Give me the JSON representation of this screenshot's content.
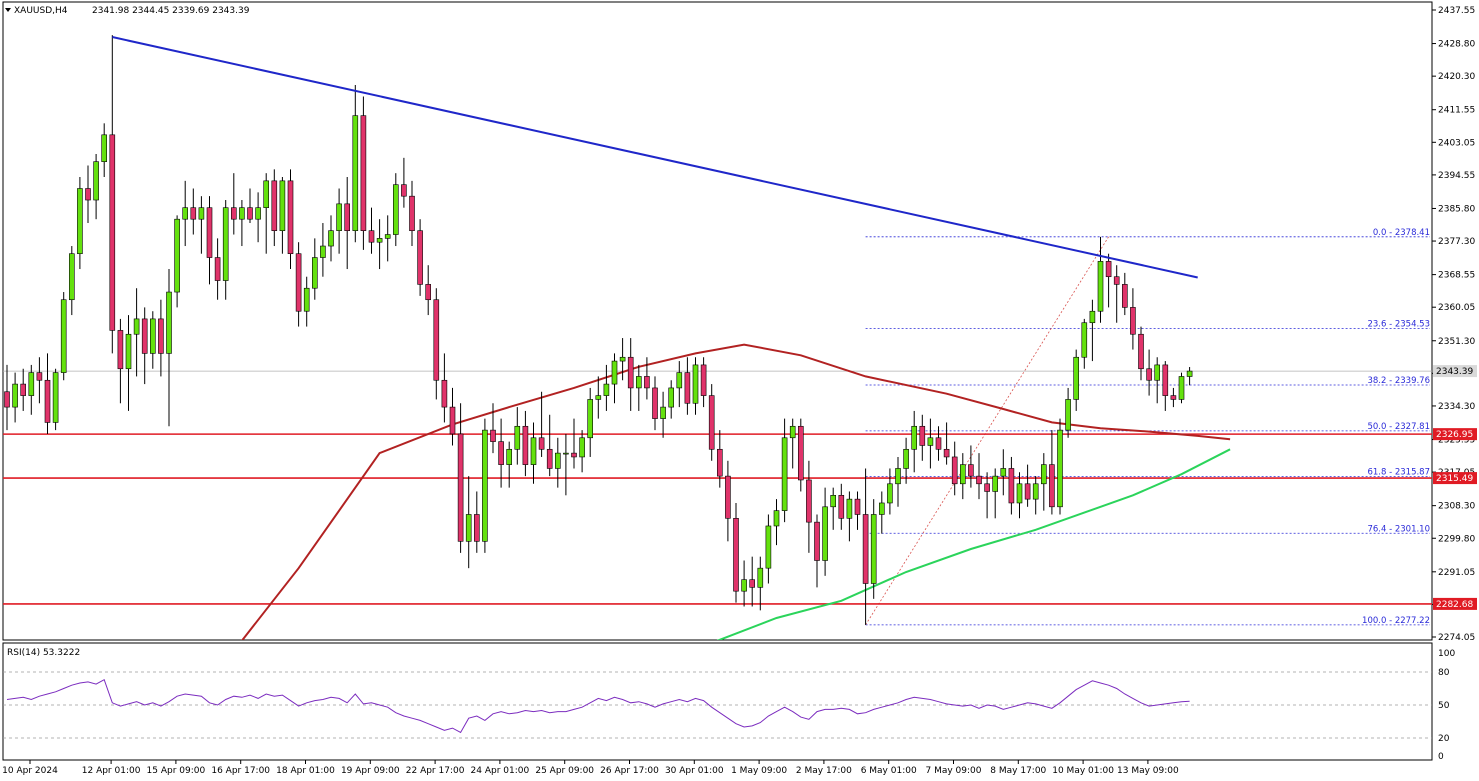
{
  "chart_header": {
    "symbol": "XAUUSD,H4",
    "ohlc": "2341.98 2344.45 2339.69 2343.39"
  },
  "rsi_header": "RSI(14) 53.3222",
  "colors": {
    "bull_fill": "#64e10e",
    "bear_fill": "#e0336a",
    "wick": "#000000",
    "trendline": "#1f27c9",
    "ma_slow": "#b22222",
    "ma_fast": "#2bd45b",
    "support_resistance": "#e01b24",
    "fib": "#2a2ad8",
    "rsi": "#7b2cbf"
  },
  "chart_data": {
    "type": "candlestick",
    "price_axis": {
      "range": [
        2274.05,
        2437.55
      ],
      "ticks": [
        "2437.55",
        "2428.80",
        "2420.30",
        "2411.55",
        "2403.05",
        "2394.55",
        "2385.80",
        "2377.30",
        "2368.55",
        "2360.05",
        "2351.30",
        "2342.80",
        "2334.30",
        "2325.55",
        "2317.05",
        "2308.30",
        "2299.80",
        "2291.05",
        "2282.55",
        "2274.05"
      ]
    },
    "time_axis": {
      "labels": [
        "10 Apr 2024",
        "12 Apr 01:00",
        "15 Apr 09:00",
        "16 Apr 17:00",
        "18 Apr 01:00",
        "19 Apr 09:00",
        "22 Apr 17:00",
        "24 Apr 01:00",
        "25 Apr 09:00",
        "26 Apr 17:00",
        "30 Apr 01:00",
        "1 May 09:00",
        "2 May 17:00",
        "6 May 01:00",
        "7 May 09:00",
        "8 May 17:00",
        "10 May 01:00",
        "13 May 09:00"
      ],
      "label_bar_index": [
        0,
        11,
        19,
        27,
        35,
        43,
        51,
        59,
        67,
        75,
        83,
        91,
        99,
        107,
        115,
        123,
        131,
        139
      ]
    },
    "candles": [
      [
        2338.0,
        2345.0,
        2328.0,
        2334.0
      ],
      [
        2334.0,
        2343.0,
        2330.0,
        2340.0
      ],
      [
        2340.0,
        2344.0,
        2333.0,
        2337.0
      ],
      [
        2337.0,
        2345.0,
        2332.0,
        2343.0
      ],
      [
        2343.0,
        2347.0,
        2335.0,
        2341.0
      ],
      [
        2341.0,
        2348.0,
        2327.0,
        2330.0
      ],
      [
        2330.0,
        2344.0,
        2328.0,
        2343.0
      ],
      [
        2343.0,
        2364.0,
        2341.0,
        2362.0
      ],
      [
        2362.0,
        2376.0,
        2358.0,
        2374.0
      ],
      [
        2374.0,
        2394.0,
        2370.0,
        2391.0
      ],
      [
        2391.0,
        2397.0,
        2382.0,
        2388.0
      ],
      [
        2388.0,
        2400.0,
        2383.0,
        2398.0
      ],
      [
        2398.0,
        2408.0,
        2394.0,
        2405.0
      ],
      [
        2405.0,
        2431.0,
        2348.0,
        2354.0
      ],
      [
        2354.0,
        2357.0,
        2335.0,
        2344.0
      ],
      [
        2344.0,
        2358.0,
        2333.0,
        2353.0
      ],
      [
        2353.0,
        2365.0,
        2342.0,
        2357.0
      ],
      [
        2357.0,
        2360.0,
        2340.0,
        2348.0
      ],
      [
        2348.0,
        2359.0,
        2344.0,
        2357.0
      ],
      [
        2357.0,
        2362.0,
        2342.0,
        2348.0
      ],
      [
        2348.0,
        2370.0,
        2329.0,
        2364.0
      ],
      [
        2364.0,
        2384.0,
        2360.0,
        2383.0
      ],
      [
        2383.0,
        2393.0,
        2376.0,
        2386.0
      ],
      [
        2386.0,
        2391.0,
        2379.0,
        2383.0
      ],
      [
        2383.0,
        2389.0,
        2374.0,
        2386.0
      ],
      [
        2386.0,
        2389.0,
        2366.0,
        2373.0
      ],
      [
        2373.0,
        2378.0,
        2362.0,
        2367.0
      ],
      [
        2367.0,
        2388.0,
        2362.0,
        2386.0
      ],
      [
        2386.0,
        2395.0,
        2379.0,
        2383.0
      ],
      [
        2383.0,
        2388.0,
        2376.0,
        2386.0
      ],
      [
        2386.0,
        2391.0,
        2382.0,
        2383.0
      ],
      [
        2383.0,
        2390.0,
        2377.0,
        2386.0
      ],
      [
        2386.0,
        2395.0,
        2374.0,
        2393.0
      ],
      [
        2393.0,
        2396.0,
        2376.0,
        2380.0
      ],
      [
        2380.0,
        2394.0,
        2374.0,
        2393.0
      ],
      [
        2393.0,
        2396.0,
        2370.0,
        2374.0
      ],
      [
        2374.0,
        2377.0,
        2355.0,
        2359.0
      ],
      [
        2359.0,
        2368.0,
        2355.0,
        2365.0
      ],
      [
        2365.0,
        2378.0,
        2362.0,
        2373.0
      ],
      [
        2373.0,
        2382.0,
        2368.0,
        2376.0
      ],
      [
        2376.0,
        2384.0,
        2372.0,
        2380.0
      ],
      [
        2380.0,
        2391.0,
        2374.0,
        2387.0
      ],
      [
        2387.0,
        2394.0,
        2370.0,
        2380.0
      ],
      [
        2380.0,
        2418.0,
        2377.0,
        2410.0
      ],
      [
        2410.0,
        2415.0,
        2375.0,
        2380.0
      ],
      [
        2380.0,
        2386.0,
        2374.0,
        2377.0
      ],
      [
        2377.0,
        2383.0,
        2370.0,
        2378.0
      ],
      [
        2378.0,
        2384.0,
        2372.0,
        2379.0
      ],
      [
        2379.0,
        2395.0,
        2376.0,
        2392.0
      ],
      [
        2392.0,
        2399.0,
        2386.0,
        2389.0
      ],
      [
        2389.0,
        2393.0,
        2376.0,
        2380.0
      ],
      [
        2380.0,
        2383.0,
        2363.0,
        2366.0
      ],
      [
        2366.0,
        2371.0,
        2358.0,
        2362.0
      ],
      [
        2362.0,
        2365.0,
        2336.0,
        2341.0
      ],
      [
        2341.0,
        2348.0,
        2330.0,
        2334.0
      ],
      [
        2334.0,
        2339.0,
        2324.0,
        2327.0
      ],
      [
        2327.0,
        2335.0,
        2296.0,
        2299.0
      ],
      [
        2299.0,
        2316.0,
        2292.0,
        2306.0
      ],
      [
        2306.0,
        2312.0,
        2296.0,
        2299.0
      ],
      [
        2299.0,
        2331.0,
        2296.0,
        2328.0
      ],
      [
        2328.0,
        2335.0,
        2322.0,
        2325.0
      ],
      [
        2325.0,
        2331.0,
        2313.0,
        2319.0
      ],
      [
        2319.0,
        2325.0,
        2313.0,
        2323.0
      ],
      [
        2323.0,
        2334.0,
        2319.0,
        2329.0
      ],
      [
        2329.0,
        2333.0,
        2316.0,
        2319.0
      ],
      [
        2319.0,
        2330.0,
        2314.0,
        2326.0
      ],
      [
        2326.0,
        2338.0,
        2321.0,
        2323.0
      ],
      [
        2323.0,
        2332.0,
        2316.0,
        2318.0
      ],
      [
        2318.0,
        2326.0,
        2313.0,
        2322.0
      ],
      [
        2322.0,
        2327.0,
        2311.0,
        2322.0
      ],
      [
        2322.0,
        2331.0,
        2318.0,
        2321.0
      ],
      [
        2321.0,
        2328.0,
        2317.0,
        2326.0
      ],
      [
        2326.0,
        2339.0,
        2321.0,
        2336.0
      ],
      [
        2336.0,
        2342.0,
        2331.0,
        2337.0
      ],
      [
        2337.0,
        2345.0,
        2333.0,
        2340.0
      ],
      [
        2340.0,
        2348.0,
        2335.0,
        2346.0
      ],
      [
        2346.0,
        2352.0,
        2341.0,
        2347.0
      ],
      [
        2347.0,
        2352.0,
        2333.0,
        2339.0
      ],
      [
        2339.0,
        2345.0,
        2333.0,
        2342.0
      ],
      [
        2342.0,
        2347.0,
        2336.0,
        2339.0
      ],
      [
        2339.0,
        2342.0,
        2328.0,
        2331.0
      ],
      [
        2331.0,
        2338.0,
        2326.0,
        2334.0
      ],
      [
        2334.0,
        2341.0,
        2331.0,
        2339.0
      ],
      [
        2339.0,
        2346.0,
        2334.0,
        2343.0
      ],
      [
        2343.0,
        2347.0,
        2332.0,
        2335.0
      ],
      [
        2335.0,
        2347.0,
        2332.0,
        2345.0
      ],
      [
        2345.0,
        2347.0,
        2334.0,
        2337.0
      ],
      [
        2337.0,
        2340.0,
        2320.0,
        2323.0
      ],
      [
        2323.0,
        2328.0,
        2313.0,
        2316.0
      ],
      [
        2316.0,
        2320.0,
        2299.0,
        2305.0
      ],
      [
        2305.0,
        2309.0,
        2283.0,
        2286.0
      ],
      [
        2286.0,
        2294.0,
        2282.0,
        2289.0
      ],
      [
        2289.0,
        2295.0,
        2282.0,
        2287.0
      ],
      [
        2287.0,
        2295.0,
        2281.0,
        2292.0
      ],
      [
        2292.0,
        2306.0,
        2288.0,
        2303.0
      ],
      [
        2303.0,
        2310.0,
        2298.0,
        2307.0
      ],
      [
        2307.0,
        2331.0,
        2304.0,
        2326.0
      ],
      [
        2326.0,
        2331.0,
        2318.0,
        2329.0
      ],
      [
        2329.0,
        2331.0,
        2312.0,
        2315.0
      ],
      [
        2315.0,
        2320.0,
        2296.0,
        2304.0
      ],
      [
        2304.0,
        2306.0,
        2287.0,
        2294.0
      ],
      [
        2294.0,
        2313.0,
        2290.0,
        2308.0
      ],
      [
        2308.0,
        2313.0,
        2302.0,
        2311.0
      ],
      [
        2311.0,
        2314.0,
        2302.0,
        2305.0
      ],
      [
        2305.0,
        2312.0,
        2299.0,
        2310.0
      ],
      [
        2310.0,
        2312.0,
        2302.0,
        2306.0
      ],
      [
        2306.0,
        2318.0,
        2277.2,
        2288.0
      ],
      [
        2288.0,
        2310.0,
        2284.0,
        2306.0
      ],
      [
        2306.0,
        2312.0,
        2301.0,
        2309.0
      ],
      [
        2309.0,
        2318.0,
        2306.0,
        2314.0
      ],
      [
        2314.0,
        2321.0,
        2308.0,
        2318.0
      ],
      [
        2318.0,
        2326.0,
        2314.0,
        2323.0
      ],
      [
        2323.0,
        2333.0,
        2317.0,
        2329.0
      ],
      [
        2329.0,
        2332.0,
        2320.0,
        2324.0
      ],
      [
        2324.0,
        2331.0,
        2318.0,
        2326.0
      ],
      [
        2326.0,
        2329.0,
        2320.0,
        2323.0
      ],
      [
        2323.0,
        2330.0,
        2319.0,
        2321.0
      ],
      [
        2321.0,
        2325.0,
        2311.0,
        2314.0
      ],
      [
        2314.0,
        2322.0,
        2310.0,
        2319.0
      ],
      [
        2319.0,
        2324.0,
        2313.0,
        2316.0
      ],
      [
        2316.0,
        2322.0,
        2310.0,
        2314.0
      ],
      [
        2314.0,
        2317.0,
        2305.0,
        2312.0
      ],
      [
        2312.0,
        2318.0,
        2305.0,
        2316.0
      ],
      [
        2316.0,
        2323.0,
        2311.0,
        2318.0
      ],
      [
        2318.0,
        2321.0,
        2306.0,
        2309.0
      ],
      [
        2309.0,
        2317.0,
        2305.0,
        2314.0
      ],
      [
        2314.0,
        2319.0,
        2308.0,
        2310.0
      ],
      [
        2310.0,
        2316.0,
        2306.0,
        2314.0
      ],
      [
        2314.0,
        2322.0,
        2307.0,
        2319.0
      ],
      [
        2319.0,
        2328.0,
        2306.0,
        2308.0
      ],
      [
        2308.0,
        2331.0,
        2306.0,
        2328.0
      ],
      [
        2328.0,
        2339.0,
        2326.0,
        2336.0
      ],
      [
        2336.0,
        2349.0,
        2333.0,
        2347.0
      ],
      [
        2347.0,
        2357.0,
        2344.0,
        2356.0
      ],
      [
        2356.0,
        2362.0,
        2346.0,
        2359.0
      ],
      [
        2359.0,
        2378.4,
        2356.0,
        2372.0
      ],
      [
        2372.0,
        2374.0,
        2360.0,
        2368.0
      ],
      [
        2368.0,
        2371.0,
        2356.0,
        2366.0
      ],
      [
        2366.0,
        2369.0,
        2358.0,
        2360.0
      ],
      [
        2360.0,
        2365.0,
        2349.0,
        2353.0
      ],
      [
        2353.0,
        2355.0,
        2341.0,
        2344.0
      ],
      [
        2344.0,
        2349.0,
        2337.0,
        2341.0
      ],
      [
        2341.0,
        2347.0,
        2335.0,
        2345.0
      ],
      [
        2345.0,
        2346.0,
        2333.0,
        2337.0
      ],
      [
        2337.0,
        2339.0,
        2334.0,
        2336.0
      ],
      [
        2336.0,
        2343.0,
        2335.0,
        2341.98
      ],
      [
        2341.98,
        2344.45,
        2339.69,
        2343.39
      ]
    ],
    "horizontal_lines": [
      {
        "price": 2326.95,
        "label": "2326.95"
      },
      {
        "price": 2315.49,
        "label": "2315.49"
      },
      {
        "price": 2282.68,
        "label": "2282.68"
      }
    ],
    "current_price": {
      "price": 2343.39,
      "label": "2343.39"
    },
    "trendline": {
      "from": [
        13,
        2430.5
      ],
      "to": [
        147,
        2367.8
      ]
    },
    "fibonacci": {
      "from_bar": 106,
      "to_bar": 147,
      "levels": [
        {
          "price": 2378.41,
          "label": "0.0 - 2378.41"
        },
        {
          "price": 2354.53,
          "label": "23.6 - 2354.53"
        },
        {
          "price": 2339.76,
          "label": "38.2 - 2339.76"
        },
        {
          "price": 2327.81,
          "label": "50.0 - 2327.81"
        },
        {
          "price": 2315.87,
          "label": "61.8 - 2315.87"
        },
        {
          "price": 2301.1,
          "label": "76.4 - 2301.10"
        },
        {
          "price": 2277.22,
          "label": "100.0 - 2277.22"
        }
      ],
      "swing": {
        "from": [
          106,
          2277.22
        ],
        "to": [
          136,
          2378.41
        ]
      }
    },
    "ma_slow": [
      [
        26,
        2265.0
      ],
      [
        36,
        2292.0
      ],
      [
        46,
        2322.0
      ],
      [
        55,
        2329.5
      ],
      [
        62,
        2334.0
      ],
      [
        70,
        2339.0
      ],
      [
        78,
        2344.5
      ],
      [
        85,
        2348.0
      ],
      [
        91,
        2350.3
      ],
      [
        98,
        2347.5
      ],
      [
        106,
        2342.0
      ],
      [
        116,
        2337.5
      ],
      [
        123,
        2333.5
      ],
      [
        129,
        2330.0
      ],
      [
        135,
        2328.5
      ],
      [
        141,
        2327.6
      ],
      [
        147,
        2326.5
      ],
      [
        151,
        2325.6
      ]
    ],
    "ma_fast": [
      [
        87,
        2272.5
      ],
      [
        95,
        2279.0
      ],
      [
        103,
        2283.5
      ],
      [
        111,
        2291.0
      ],
      [
        119,
        2297.0
      ],
      [
        127,
        2302.0
      ],
      [
        133,
        2306.5
      ],
      [
        139,
        2311.0
      ],
      [
        145,
        2316.5
      ],
      [
        151,
        2323.0
      ]
    ],
    "rsi": {
      "title": "RSI(14) 53.3222",
      "range": [
        0,
        100
      ],
      "levels": [
        {
          "value": 80,
          "label": "80"
        },
        {
          "value": 50,
          "label": "50"
        },
        {
          "value": 20,
          "label": "20"
        }
      ],
      "axis_labels": [
        "100",
        "0"
      ],
      "values": [
        55,
        56,
        57,
        55,
        58,
        60,
        62,
        65,
        68,
        70,
        71,
        69,
        73,
        52,
        49,
        51,
        53,
        50,
        52,
        49,
        53,
        58,
        60,
        59,
        58,
        52,
        50,
        55,
        58,
        57,
        59,
        56,
        60,
        58,
        59,
        54,
        49,
        52,
        54,
        55,
        57,
        56,
        52,
        60,
        51,
        52,
        50,
        48,
        43,
        40,
        38,
        36,
        33,
        30,
        27,
        29,
        25,
        38,
        40,
        36,
        42,
        44,
        42,
        43,
        45,
        44,
        45,
        43,
        44,
        44,
        46,
        48,
        52,
        56,
        54,
        57,
        55,
        52,
        53,
        51,
        48,
        51,
        53,
        55,
        53,
        56,
        54,
        48,
        43,
        38,
        33,
        30,
        31,
        34,
        40,
        44,
        48,
        44,
        39,
        37,
        44,
        46,
        46,
        47,
        46,
        42,
        43,
        46,
        48,
        50,
        52,
        55,
        57,
        56,
        55,
        53,
        51,
        50,
        49,
        50,
        47,
        50,
        49,
        46,
        48,
        50,
        52,
        51,
        49,
        47,
        52,
        58,
        64,
        68,
        72,
        70,
        68,
        65,
        60,
        56,
        52,
        49,
        50,
        51,
        52,
        53,
        53.32
      ]
    }
  }
}
